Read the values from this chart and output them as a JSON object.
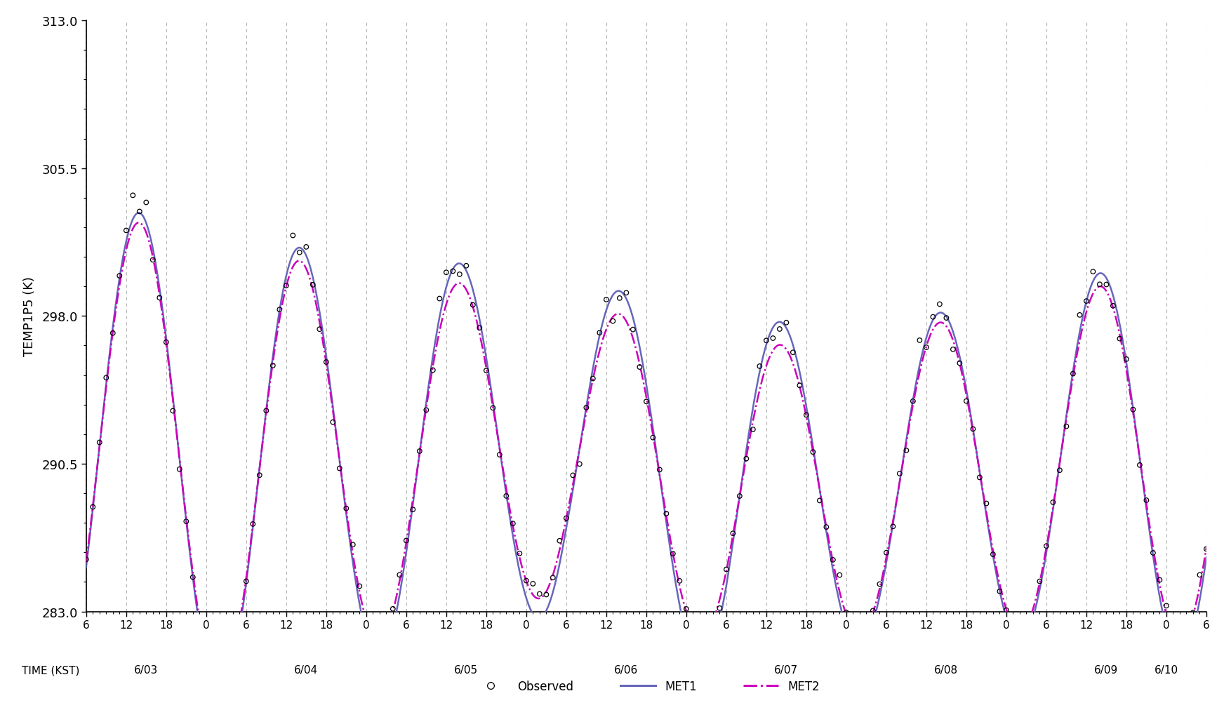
{
  "title": "",
  "ylabel": "TEMP1P5 (K)",
  "xlabel_main": "TIME (KST)",
  "xlabel_dates": [
    "6/03",
    "6/04",
    "6/05",
    "6/06",
    "6/07",
    "6/08",
    "6/09",
    "6/10"
  ],
  "ylim": [
    283.0,
    313.0
  ],
  "yticks": [
    283.0,
    290.5,
    298.0,
    305.5,
    313.0
  ],
  "background_color": "#ffffff",
  "line_color_met1": "#6666bb",
  "line_color_met2": "#cc00bb",
  "obs_color": "#000000",
  "grid_color": "#aaaaaa",
  "met1_day_params": {
    "bases": [
      291.5,
      290.2,
      291.0,
      291.5,
      288.8,
      289.5,
      290.5,
      291.0
    ],
    "amps": [
      12.5,
      11.5,
      10.0,
      8.5,
      9.0,
      8.0,
      9.0,
      10.5
    ],
    "peaks": [
      14.0,
      14.0,
      14.0,
      14.0,
      14.0,
      14.0,
      14.0,
      14.0
    ]
  },
  "met2_day_params": {
    "bases": [
      291.5,
      290.2,
      291.0,
      291.5,
      288.8,
      289.5,
      290.5,
      291.0
    ],
    "amps": [
      12.0,
      11.0,
      9.0,
      7.5,
      7.5,
      7.5,
      8.5,
      9.5
    ],
    "peaks": [
      14.0,
      14.0,
      14.0,
      14.0,
      14.0,
      14.0,
      14.0,
      14.0
    ]
  }
}
